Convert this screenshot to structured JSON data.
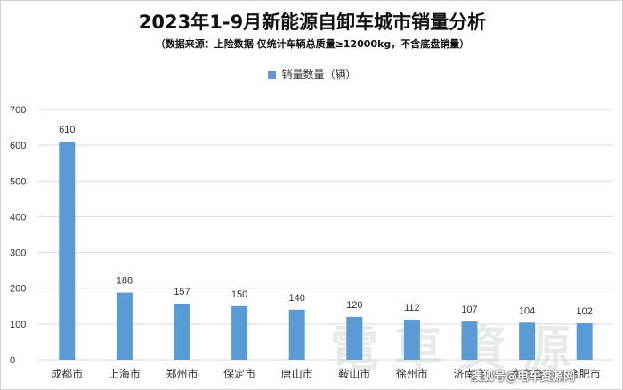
{
  "title": "2023年1-9月新能源自卸车城市销量分析",
  "subtitle": "（数据来源：上险数据 仅统计车辆总质量≥12000kg，不含底盘销量）",
  "watermark": {
    "logo": "电车资源",
    "credit": "搜狐号@电车资源网"
  },
  "colors": {
    "bar": "#5b9bd5",
    "grid": "#d9d9d9",
    "axis_text": "#333333"
  },
  "chart_data": {
    "type": "bar",
    "title": "2023年1-9月新能源自卸车城市销量分析",
    "subtitle": "（数据来源：上险数据 仅统计车辆总质量≥12000kg，不含底盘销量）",
    "categories": [
      "成都市",
      "上海市",
      "郑州市",
      "保定市",
      "唐山市",
      "鞍山市",
      "徐州市",
      "济南市",
      "南京市",
      "合肥市"
    ],
    "series": [
      {
        "name": "销量数量（辆）",
        "values": [
          610,
          188,
          157,
          150,
          140,
          120,
          112,
          107,
          104,
          102
        ]
      }
    ],
    "ylim": [
      0,
      700
    ],
    "yticks": [
      0,
      100,
      200,
      300,
      400,
      500,
      600,
      700
    ],
    "grid": true,
    "legend": "top",
    "data_labels": true
  }
}
